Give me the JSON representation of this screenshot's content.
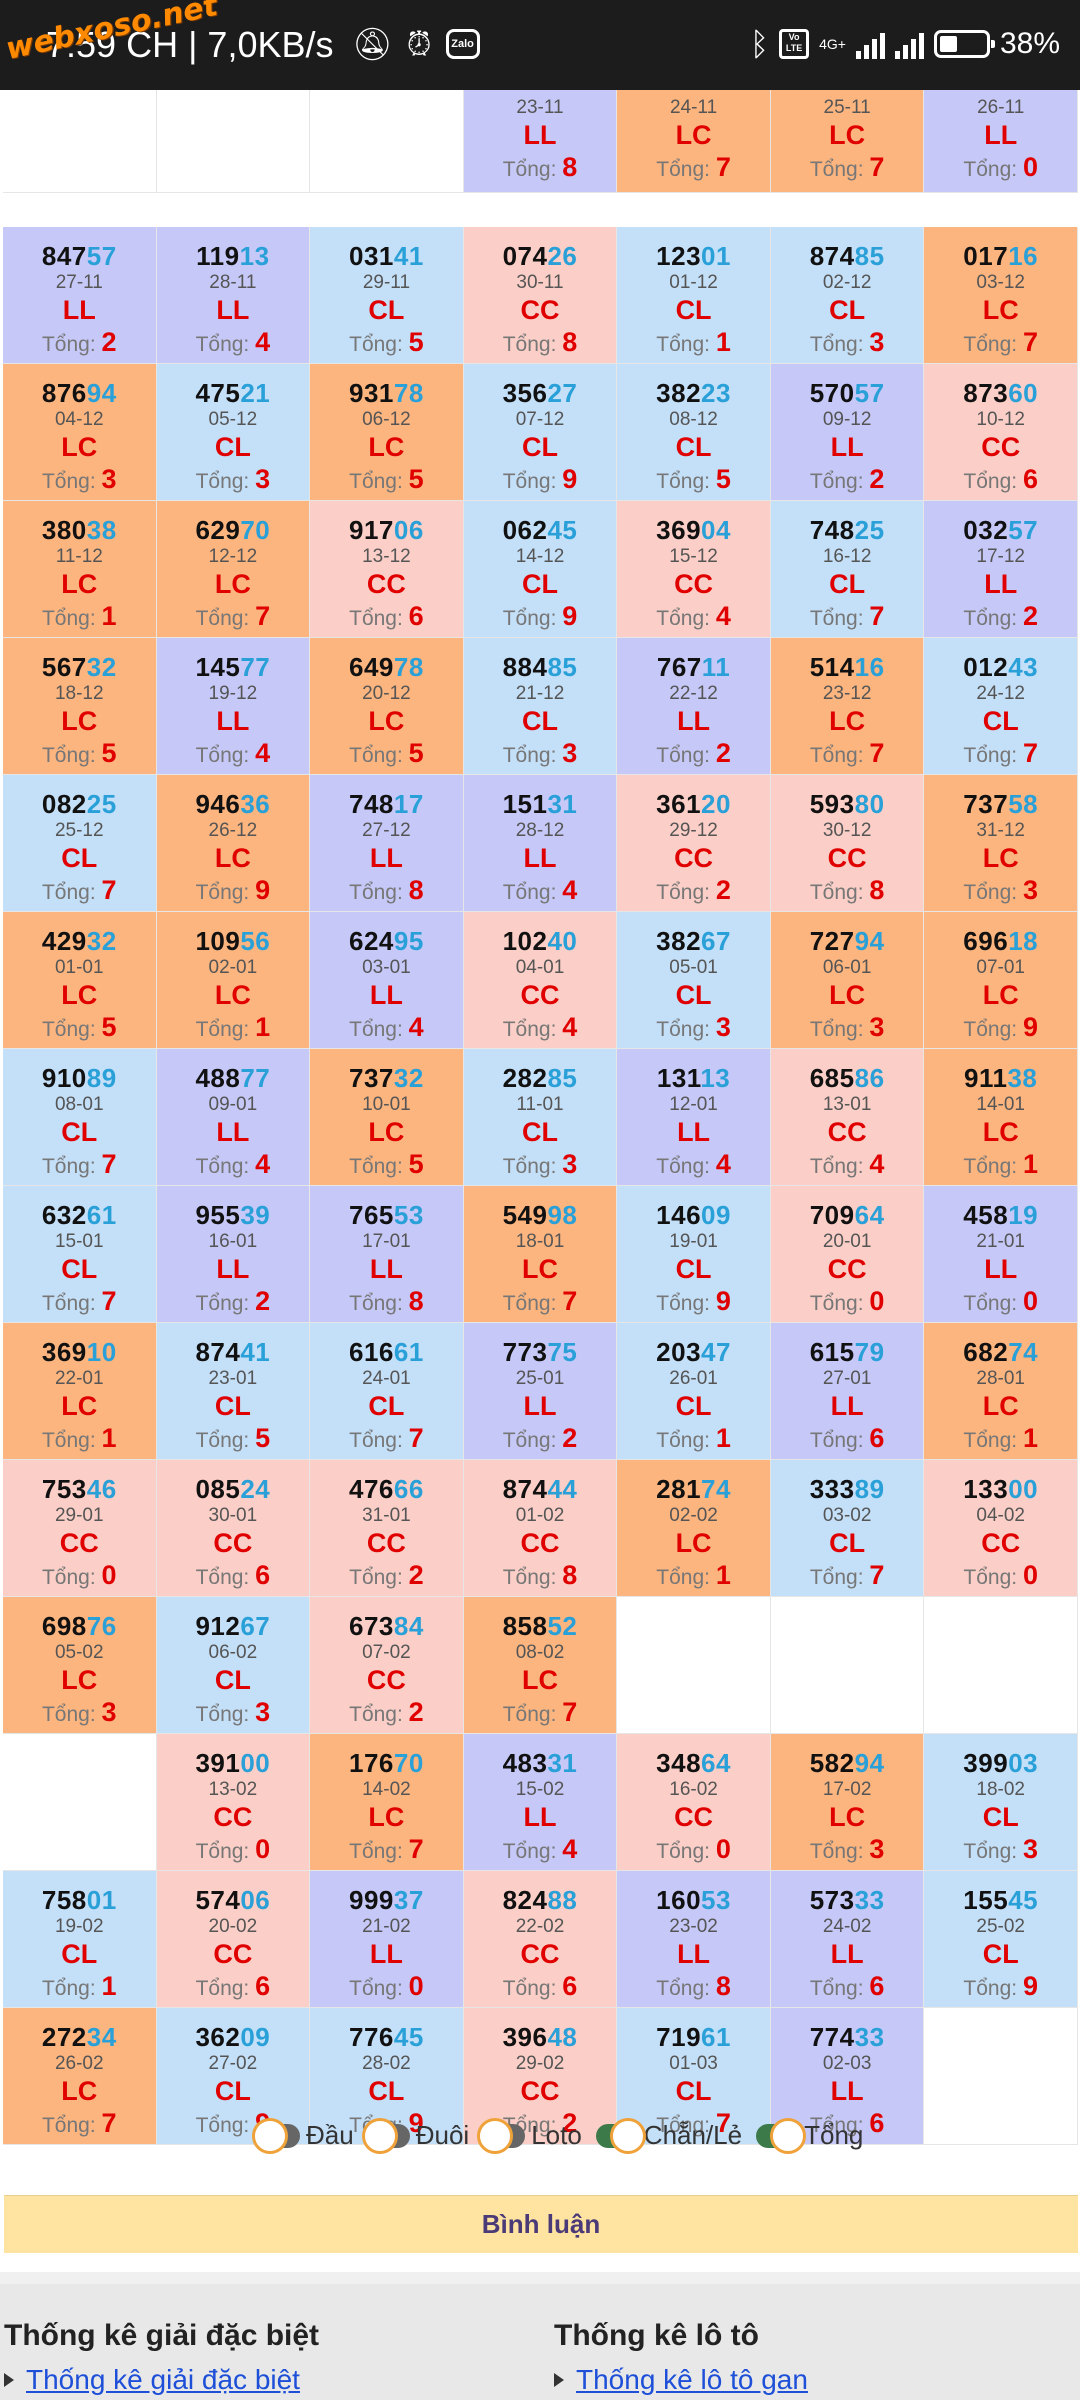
{
  "status_bar": {
    "time": "7:59 CH | 7,0KB/s",
    "watermark": "webxoso.net",
    "battery": "38%",
    "battery_level": 0.38,
    "network": "4G+",
    "volte": "Vo LTE",
    "app_icon": "Zalo",
    "icons": [
      "mute-icon",
      "alarm-icon",
      "zalo-icon",
      "bluetooth-icon",
      "volte-icon",
      "signal-icon",
      "signal-icon",
      "battery-icon"
    ]
  },
  "colors": {
    "orange": "#fcb57f",
    "blue": "#c4dff8",
    "purple": "#c6c9f8",
    "pink": "#fbcfc7",
    "empty": "#ffffff",
    "tail_digits": "#2aa0d8",
    "code_red": "#e00000"
  },
  "grid": {
    "rows": [
      [
        {
          "empty": true
        },
        {
          "empty": true
        },
        {
          "empty": true
        },
        {
          "date": "23-11",
          "code": "LL",
          "sum": "8",
          "color": "purple"
        },
        {
          "date": "24-11",
          "code": "LC",
          "sum": "7",
          "color": "orange"
        },
        {
          "date": "25-11",
          "code": "LC",
          "sum": "7",
          "color": "orange"
        },
        {
          "date": "26-11",
          "code": "LL",
          "sum": "0",
          "color": "purple"
        }
      ],
      [
        {
          "head": "847",
          "tail": "57",
          "date": "27-11",
          "code": "LL",
          "sum": "2",
          "color": "purple"
        },
        {
          "head": "119",
          "tail": "13",
          "date": "28-11",
          "code": "LL",
          "sum": "4",
          "color": "purple"
        },
        {
          "head": "031",
          "tail": "41",
          "date": "29-11",
          "code": "CL",
          "sum": "5",
          "color": "blue"
        },
        {
          "head": "074",
          "tail": "26",
          "date": "30-11",
          "code": "CC",
          "sum": "8",
          "color": "pink"
        },
        {
          "head": "123",
          "tail": "01",
          "date": "01-12",
          "code": "CL",
          "sum": "1",
          "color": "blue"
        },
        {
          "head": "874",
          "tail": "85",
          "date": "02-12",
          "code": "CL",
          "sum": "3",
          "color": "blue"
        },
        {
          "head": "017",
          "tail": "16",
          "date": "03-12",
          "code": "LC",
          "sum": "7",
          "color": "orange"
        }
      ],
      [
        {
          "head": "876",
          "tail": "94",
          "date": "04-12",
          "code": "LC",
          "sum": "3",
          "color": "orange"
        },
        {
          "head": "475",
          "tail": "21",
          "date": "05-12",
          "code": "CL",
          "sum": "3",
          "color": "blue"
        },
        {
          "head": "931",
          "tail": "78",
          "date": "06-12",
          "code": "LC",
          "sum": "5",
          "color": "orange"
        },
        {
          "head": "356",
          "tail": "27",
          "date": "07-12",
          "code": "CL",
          "sum": "9",
          "color": "blue"
        },
        {
          "head": "382",
          "tail": "23",
          "date": "08-12",
          "code": "CL",
          "sum": "5",
          "color": "blue"
        },
        {
          "head": "570",
          "tail": "57",
          "date": "09-12",
          "code": "LL",
          "sum": "2",
          "color": "purple"
        },
        {
          "head": "873",
          "tail": "60",
          "date": "10-12",
          "code": "CC",
          "sum": "6",
          "color": "pink"
        }
      ],
      [
        {
          "head": "380",
          "tail": "38",
          "date": "11-12",
          "code": "LC",
          "sum": "1",
          "color": "orange"
        },
        {
          "head": "629",
          "tail": "70",
          "date": "12-12",
          "code": "LC",
          "sum": "7",
          "color": "orange"
        },
        {
          "head": "917",
          "tail": "06",
          "date": "13-12",
          "code": "CC",
          "sum": "6",
          "color": "pink"
        },
        {
          "head": "062",
          "tail": "45",
          "date": "14-12",
          "code": "CL",
          "sum": "9",
          "color": "blue"
        },
        {
          "head": "369",
          "tail": "04",
          "date": "15-12",
          "code": "CC",
          "sum": "4",
          "color": "pink"
        },
        {
          "head": "748",
          "tail": "25",
          "date": "16-12",
          "code": "CL",
          "sum": "7",
          "color": "blue"
        },
        {
          "head": "032",
          "tail": "57",
          "date": "17-12",
          "code": "LL",
          "sum": "2",
          "color": "purple"
        }
      ],
      [
        {
          "head": "567",
          "tail": "32",
          "date": "18-12",
          "code": "LC",
          "sum": "5",
          "color": "orange"
        },
        {
          "head": "145",
          "tail": "77",
          "date": "19-12",
          "code": "LL",
          "sum": "4",
          "color": "purple"
        },
        {
          "head": "649",
          "tail": "78",
          "date": "20-12",
          "code": "LC",
          "sum": "5",
          "color": "orange"
        },
        {
          "head": "884",
          "tail": "85",
          "date": "21-12",
          "code": "CL",
          "sum": "3",
          "color": "blue"
        },
        {
          "head": "767",
          "tail": "11",
          "date": "22-12",
          "code": "LL",
          "sum": "2",
          "color": "purple"
        },
        {
          "head": "514",
          "tail": "16",
          "date": "23-12",
          "code": "LC",
          "sum": "7",
          "color": "orange"
        },
        {
          "head": "012",
          "tail": "43",
          "date": "24-12",
          "code": "CL",
          "sum": "7",
          "color": "blue"
        }
      ],
      [
        {
          "head": "082",
          "tail": "25",
          "date": "25-12",
          "code": "CL",
          "sum": "7",
          "color": "blue"
        },
        {
          "head": "946",
          "tail": "36",
          "date": "26-12",
          "code": "LC",
          "sum": "9",
          "color": "orange"
        },
        {
          "head": "748",
          "tail": "17",
          "date": "27-12",
          "code": "LL",
          "sum": "8",
          "color": "purple"
        },
        {
          "head": "151",
          "tail": "31",
          "date": "28-12",
          "code": "LL",
          "sum": "4",
          "color": "purple"
        },
        {
          "head": "361",
          "tail": "20",
          "date": "29-12",
          "code": "CC",
          "sum": "2",
          "color": "pink"
        },
        {
          "head": "593",
          "tail": "80",
          "date": "30-12",
          "code": "CC",
          "sum": "8",
          "color": "pink"
        },
        {
          "head": "737",
          "tail": "58",
          "date": "31-12",
          "code": "LC",
          "sum": "3",
          "color": "orange"
        }
      ],
      [
        {
          "head": "429",
          "tail": "32",
          "date": "01-01",
          "code": "LC",
          "sum": "5",
          "color": "orange"
        },
        {
          "head": "109",
          "tail": "56",
          "date": "02-01",
          "code": "LC",
          "sum": "1",
          "color": "orange"
        },
        {
          "head": "624",
          "tail": "95",
          "date": "03-01",
          "code": "LL",
          "sum": "4",
          "color": "purple"
        },
        {
          "head": "102",
          "tail": "40",
          "date": "04-01",
          "code": "CC",
          "sum": "4",
          "color": "pink"
        },
        {
          "head": "382",
          "tail": "67",
          "date": "05-01",
          "code": "CL",
          "sum": "3",
          "color": "blue"
        },
        {
          "head": "727",
          "tail": "94",
          "date": "06-01",
          "code": "LC",
          "sum": "3",
          "color": "orange"
        },
        {
          "head": "696",
          "tail": "18",
          "date": "07-01",
          "code": "LC",
          "sum": "9",
          "color": "orange"
        }
      ],
      [
        {
          "head": "910",
          "tail": "89",
          "date": "08-01",
          "code": "CL",
          "sum": "7",
          "color": "blue"
        },
        {
          "head": "488",
          "tail": "77",
          "date": "09-01",
          "code": "LL",
          "sum": "4",
          "color": "purple"
        },
        {
          "head": "737",
          "tail": "32",
          "date": "10-01",
          "code": "LC",
          "sum": "5",
          "color": "orange"
        },
        {
          "head": "282",
          "tail": "85",
          "date": "11-01",
          "code": "CL",
          "sum": "3",
          "color": "blue"
        },
        {
          "head": "131",
          "tail": "13",
          "date": "12-01",
          "code": "LL",
          "sum": "4",
          "color": "purple"
        },
        {
          "head": "685",
          "tail": "86",
          "date": "13-01",
          "code": "CC",
          "sum": "4",
          "color": "pink"
        },
        {
          "head": "911",
          "tail": "38",
          "date": "14-01",
          "code": "LC",
          "sum": "1",
          "color": "orange"
        }
      ],
      [
        {
          "head": "632",
          "tail": "61",
          "date": "15-01",
          "code": "CL",
          "sum": "7",
          "color": "blue"
        },
        {
          "head": "955",
          "tail": "39",
          "date": "16-01",
          "code": "LL",
          "sum": "2",
          "color": "purple"
        },
        {
          "head": "765",
          "tail": "53",
          "date": "17-01",
          "code": "LL",
          "sum": "8",
          "color": "purple"
        },
        {
          "head": "549",
          "tail": "98",
          "date": "18-01",
          "code": "LC",
          "sum": "7",
          "color": "orange"
        },
        {
          "head": "146",
          "tail": "09",
          "date": "19-01",
          "code": "CL",
          "sum": "9",
          "color": "blue"
        },
        {
          "head": "709",
          "tail": "64",
          "date": "20-01",
          "code": "CC",
          "sum": "0",
          "color": "pink"
        },
        {
          "head": "458",
          "tail": "19",
          "date": "21-01",
          "code": "LL",
          "sum": "0",
          "color": "purple"
        }
      ],
      [
        {
          "head": "369",
          "tail": "10",
          "date": "22-01",
          "code": "LC",
          "sum": "1",
          "color": "orange"
        },
        {
          "head": "874",
          "tail": "41",
          "date": "23-01",
          "code": "CL",
          "sum": "5",
          "color": "blue"
        },
        {
          "head": "616",
          "tail": "61",
          "date": "24-01",
          "code": "CL",
          "sum": "7",
          "color": "blue"
        },
        {
          "head": "773",
          "tail": "75",
          "date": "25-01",
          "code": "LL",
          "sum": "2",
          "color": "purple"
        },
        {
          "head": "203",
          "tail": "47",
          "date": "26-01",
          "code": "CL",
          "sum": "1",
          "color": "blue"
        },
        {
          "head": "615",
          "tail": "79",
          "date": "27-01",
          "code": "LL",
          "sum": "6",
          "color": "purple"
        },
        {
          "head": "682",
          "tail": "74",
          "date": "28-01",
          "code": "LC",
          "sum": "1",
          "color": "orange"
        }
      ],
      [
        {
          "head": "753",
          "tail": "46",
          "date": "29-01",
          "code": "CC",
          "sum": "0",
          "color": "pink"
        },
        {
          "head": "085",
          "tail": "24",
          "date": "30-01",
          "code": "CC",
          "sum": "6",
          "color": "pink"
        },
        {
          "head": "476",
          "tail": "66",
          "date": "31-01",
          "code": "CC",
          "sum": "2",
          "color": "pink"
        },
        {
          "head": "874",
          "tail": "44",
          "date": "01-02",
          "code": "CC",
          "sum": "8",
          "color": "pink"
        },
        {
          "head": "281",
          "tail": "74",
          "date": "02-02",
          "code": "LC",
          "sum": "1",
          "color": "orange"
        },
        {
          "head": "333",
          "tail": "89",
          "date": "03-02",
          "code": "CL",
          "sum": "7",
          "color": "blue"
        },
        {
          "head": "133",
          "tail": "00",
          "date": "04-02",
          "code": "CC",
          "sum": "0",
          "color": "pink"
        }
      ],
      [
        {
          "head": "698",
          "tail": "76",
          "date": "05-02",
          "code": "LC",
          "sum": "3",
          "color": "orange"
        },
        {
          "head": "912",
          "tail": "67",
          "date": "06-02",
          "code": "CL",
          "sum": "3",
          "color": "blue"
        },
        {
          "head": "673",
          "tail": "84",
          "date": "07-02",
          "code": "CC",
          "sum": "2",
          "color": "pink"
        },
        {
          "head": "858",
          "tail": "52",
          "date": "08-02",
          "code": "LC",
          "sum": "7",
          "color": "orange"
        },
        {
          "empty": true
        },
        {
          "empty": true
        },
        {
          "empty": true
        }
      ],
      [
        {
          "empty": true
        },
        {
          "head": "391",
          "tail": "00",
          "date": "13-02",
          "code": "CC",
          "sum": "0",
          "color": "pink"
        },
        {
          "head": "176",
          "tail": "70",
          "date": "14-02",
          "code": "LC",
          "sum": "7",
          "color": "orange"
        },
        {
          "head": "483",
          "tail": "31",
          "date": "15-02",
          "code": "LL",
          "sum": "4",
          "color": "purple"
        },
        {
          "head": "348",
          "tail": "64",
          "date": "16-02",
          "code": "CC",
          "sum": "0",
          "color": "pink"
        },
        {
          "head": "582",
          "tail": "94",
          "date": "17-02",
          "code": "LC",
          "sum": "3",
          "color": "orange"
        },
        {
          "head": "399",
          "tail": "03",
          "date": "18-02",
          "code": "CL",
          "sum": "3",
          "color": "blue"
        }
      ],
      [
        {
          "head": "758",
          "tail": "01",
          "date": "19-02",
          "code": "CL",
          "sum": "1",
          "color": "blue"
        },
        {
          "head": "574",
          "tail": "06",
          "date": "20-02",
          "code": "CC",
          "sum": "6",
          "color": "pink"
        },
        {
          "head": "999",
          "tail": "37",
          "date": "21-02",
          "code": "LL",
          "sum": "0",
          "color": "purple"
        },
        {
          "head": "824",
          "tail": "88",
          "date": "22-02",
          "code": "CC",
          "sum": "6",
          "color": "pink"
        },
        {
          "head": "160",
          "tail": "53",
          "date": "23-02",
          "code": "LL",
          "sum": "8",
          "color": "purple"
        },
        {
          "head": "573",
          "tail": "33",
          "date": "24-02",
          "code": "LL",
          "sum": "6",
          "color": "purple"
        },
        {
          "head": "155",
          "tail": "45",
          "date": "25-02",
          "code": "CL",
          "sum": "9",
          "color": "blue"
        }
      ],
      [
        {
          "head": "272",
          "tail": "34",
          "date": "26-02",
          "code": "LC",
          "sum": "7",
          "color": "orange"
        },
        {
          "head": "362",
          "tail": "09",
          "date": "27-02",
          "code": "CL",
          "sum": "9",
          "color": "blue"
        },
        {
          "head": "776",
          "tail": "45",
          "date": "28-02",
          "code": "CL",
          "sum": "9",
          "color": "blue"
        },
        {
          "head": "396",
          "tail": "48",
          "date": "29-02",
          "code": "CC",
          "sum": "2",
          "color": "pink"
        },
        {
          "head": "719",
          "tail": "61",
          "date": "01-03",
          "code": "CL",
          "sum": "7",
          "color": "blue"
        },
        {
          "head": "774",
          "tail": "33",
          "date": "02-03",
          "code": "LL",
          "sum": "6",
          "color": "purple"
        },
        {
          "empty": true
        }
      ]
    ],
    "sum_label": "Tổng: "
  },
  "legend": [
    {
      "label": "Đầu",
      "on": false
    },
    {
      "label": "Đuôi",
      "on": false
    },
    {
      "label": "Loto",
      "on": false
    },
    {
      "label": "Chẵn/Lẻ",
      "on": true
    },
    {
      "label": "Tổng",
      "on": true
    }
  ],
  "comment_button": "Bình luận",
  "footer": {
    "col1": {
      "title": "Thống kê giải đặc biệt",
      "link": "Thống kê giải đặc biệt"
    },
    "col2": {
      "title": "Thống kê lô tô",
      "link": "Thống kê lô tô gan"
    }
  }
}
